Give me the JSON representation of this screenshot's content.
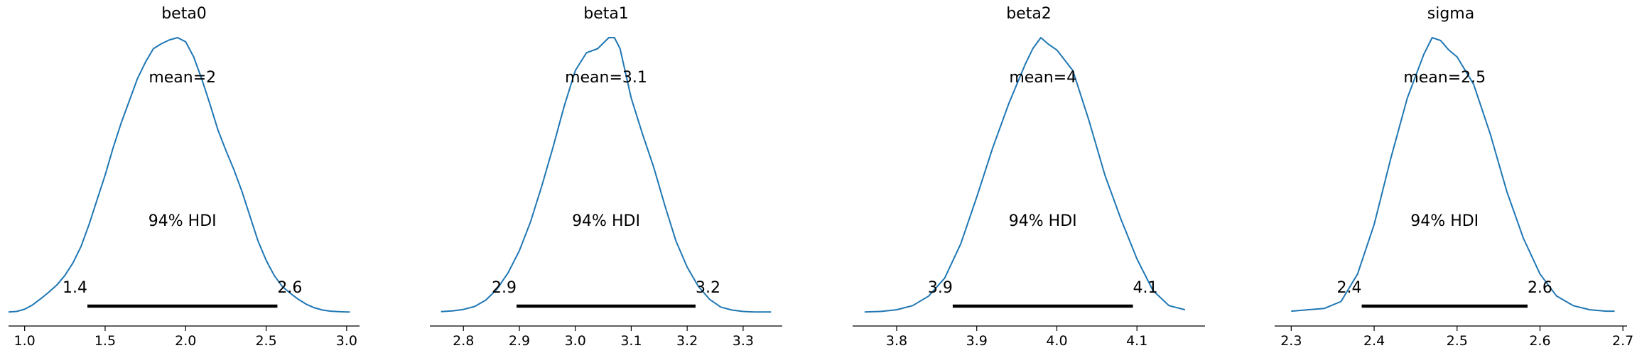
{
  "chart_data": [
    {
      "type": "density",
      "title": "beta0",
      "mean_label": "mean=2",
      "hdi_label": "94% HDI",
      "hdi": [
        1.39,
        2.57
      ],
      "hdi_low_label": "1.4",
      "hdi_high_label": "2.6",
      "xlim": [
        0.9,
        3.08
      ],
      "xticks": [
        1.0,
        1.5,
        2.0,
        2.5,
        3.0
      ],
      "xtick_labels": [
        "1.0",
        "1.5",
        "2.0",
        "2.5",
        "3.0"
      ],
      "kde": {
        "x": [
          0.9,
          0.95,
          1.0,
          1.05,
          1.1,
          1.15,
          1.2,
          1.25,
          1.3,
          1.35,
          1.4,
          1.45,
          1.5,
          1.55,
          1.6,
          1.65,
          1.7,
          1.75,
          1.8,
          1.85,
          1.9,
          1.95,
          2.0,
          2.05,
          2.1,
          2.15,
          2.2,
          2.25,
          2.3,
          2.35,
          2.4,
          2.45,
          2.5,
          2.55,
          2.6,
          2.65,
          2.7,
          2.75,
          2.8,
          2.85,
          2.9,
          2.95,
          3.0,
          3.02
        ],
        "density": [
          0.002,
          0.004,
          0.012,
          0.028,
          0.05,
          0.074,
          0.1,
          0.135,
          0.18,
          0.24,
          0.32,
          0.41,
          0.5,
          0.6,
          0.69,
          0.77,
          0.85,
          0.91,
          0.96,
          0.978,
          0.992,
          1.0,
          0.985,
          0.93,
          0.85,
          0.76,
          0.665,
          0.59,
          0.52,
          0.44,
          0.35,
          0.26,
          0.19,
          0.135,
          0.095,
          0.07,
          0.048,
          0.03,
          0.017,
          0.009,
          0.005,
          0.003,
          0.002,
          0.002
        ]
      }
    },
    {
      "type": "density",
      "title": "beta1",
      "mean_label": "mean=3.1",
      "hdi_label": "94% HDI",
      "hdi": [
        2.895,
        3.215
      ],
      "hdi_low_label": "2.9",
      "hdi_high_label": "3.2",
      "xlim": [
        2.74,
        3.37
      ],
      "xticks": [
        2.8,
        2.9,
        3.0,
        3.1,
        3.2,
        3.3
      ],
      "xtick_labels": [
        "2.8",
        "2.9",
        "3.0",
        "3.1",
        "3.2",
        "3.3"
      ],
      "kde": {
        "x": [
          2.76,
          2.78,
          2.8,
          2.82,
          2.84,
          2.86,
          2.88,
          2.9,
          2.92,
          2.94,
          2.96,
          2.98,
          3.0,
          3.02,
          3.04,
          3.06,
          3.07,
          3.08,
          3.1,
          3.12,
          3.14,
          3.16,
          3.18,
          3.2,
          3.22,
          3.24,
          3.26,
          3.28,
          3.3,
          3.32,
          3.35
        ],
        "density": [
          0.003,
          0.006,
          0.011,
          0.022,
          0.045,
          0.085,
          0.145,
          0.225,
          0.33,
          0.46,
          0.6,
          0.75,
          0.88,
          0.945,
          0.96,
          1.0,
          1.0,
          0.96,
          0.78,
          0.65,
          0.53,
          0.39,
          0.26,
          0.165,
          0.095,
          0.048,
          0.02,
          0.009,
          0.004,
          0.002,
          0.002
        ]
      }
    },
    {
      "type": "density",
      "title": "beta2",
      "mean_label": "mean=4",
      "hdi_label": "94% HDI",
      "hdi": [
        3.87,
        4.095
      ],
      "hdi_low_label": "3.9",
      "hdi_high_label": "4.1",
      "xlim": [
        3.745,
        4.185
      ],
      "xticks": [
        3.8,
        3.9,
        4.0,
        4.1
      ],
      "xtick_labels": [
        "3.8",
        "3.9",
        "4.0",
        "4.1"
      ],
      "kde": {
        "x": [
          3.76,
          3.78,
          3.8,
          3.82,
          3.84,
          3.86,
          3.88,
          3.9,
          3.92,
          3.94,
          3.96,
          3.97,
          3.98,
          3.99,
          4.0,
          4.02,
          4.04,
          4.06,
          4.08,
          4.1,
          4.12,
          4.14,
          4.16
        ],
        "density": [
          0.002,
          0.004,
          0.01,
          0.025,
          0.06,
          0.125,
          0.25,
          0.42,
          0.6,
          0.76,
          0.9,
          0.96,
          1.0,
          0.975,
          0.955,
          0.88,
          0.7,
          0.5,
          0.34,
          0.195,
          0.08,
          0.025,
          0.01
        ]
      }
    },
    {
      "type": "density",
      "title": "sigma",
      "mean_label": "mean=2.5",
      "hdi_label": "94% HDI",
      "hdi": [
        2.385,
        2.585
      ],
      "hdi_low_label": "2.4",
      "hdi_high_label": "2.6",
      "xlim": [
        2.28,
        2.705
      ],
      "xticks": [
        2.3,
        2.4,
        2.5,
        2.6,
        2.7
      ],
      "xtick_labels": [
        "2.3",
        "2.4",
        "2.5",
        "2.6",
        "2.7"
      ],
      "kde": {
        "x": [
          2.3,
          2.32,
          2.34,
          2.36,
          2.38,
          2.4,
          2.42,
          2.44,
          2.46,
          2.47,
          2.48,
          2.49,
          2.5,
          2.52,
          2.54,
          2.56,
          2.58,
          2.6,
          2.62,
          2.64,
          2.66,
          2.68,
          2.69
        ],
        "density": [
          0.005,
          0.01,
          0.015,
          0.04,
          0.14,
          0.32,
          0.56,
          0.78,
          0.94,
          1.0,
          0.99,
          0.955,
          0.93,
          0.83,
          0.65,
          0.44,
          0.27,
          0.14,
          0.06,
          0.025,
          0.01,
          0.005,
          0.005
        ]
      }
    }
  ]
}
